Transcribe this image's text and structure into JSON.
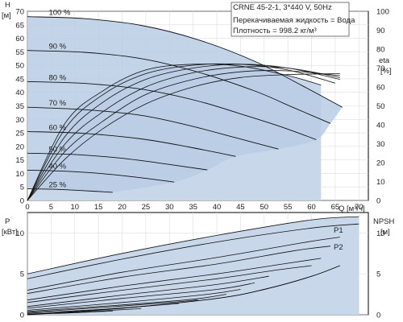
{
  "chart_data": [
    {
      "type": "line",
      "title": "CRNE 45-2-1, 3*440 V, 50Hz",
      "info_lines": [
        "Перекачиваемая жидкость = Вода",
        "Плотность = 998.2 кг/м³"
      ],
      "left_axis": {
        "name": "H",
        "unit": "[м]",
        "ticks": [
          "0",
          "5",
          "10",
          "15",
          "20",
          "25",
          "30",
          "35",
          "40",
          "45",
          "50",
          "55",
          "60",
          "65",
          "70"
        ],
        "ylim": [
          0,
          70
        ]
      },
      "right_axis": {
        "name": "eta",
        "unit": "[%]",
        "ticks": [
          "0",
          "10",
          "20",
          "30",
          "40",
          "50",
          "60",
          "70",
          "80",
          "90",
          "100"
        ],
        "ylim": [
          0,
          100
        ]
      },
      "x_axis": {
        "name": "Q",
        "unit": "[м³/ч]",
        "ticks": [
          "0",
          "5",
          "10",
          "15",
          "20",
          "25",
          "30",
          "35",
          "40",
          "45",
          "50",
          "55",
          "60",
          "65",
          "70"
        ],
        "xlim": [
          0,
          72
        ]
      },
      "speed_labels": [
        "100 %",
        "90 %",
        "80 %",
        "70 %",
        "60 %",
        "50 %",
        "40 %",
        "25 %"
      ],
      "head_curves": [
        {
          "name": "100 %",
          "x": [
            0,
            12,
            24,
            36,
            48,
            58,
            66.5
          ],
          "y": [
            68,
            67.3,
            64.8,
            59.5,
            51.5,
            42.5,
            34.5
          ]
        },
        {
          "name": "90 %",
          "x": [
            0,
            12,
            24,
            36,
            48,
            56,
            64
          ],
          "y": [
            55.5,
            54.8,
            52.5,
            47.5,
            40.5,
            34.5,
            28.5
          ]
        },
        {
          "name": "80 %",
          "x": [
            0,
            12,
            24,
            36,
            46,
            54,
            61
          ],
          "y": [
            44,
            43.3,
            41.2,
            36.8,
            31.5,
            27,
            22.5
          ]
        },
        {
          "name": "70 %",
          "x": [
            0,
            12,
            24,
            34,
            44,
            53
          ],
          "y": [
            34.5,
            33.6,
            31.5,
            27.8,
            23.2,
            19
          ]
        },
        {
          "name": "60 %",
          "x": [
            0,
            12,
            24,
            34,
            44
          ],
          "y": [
            25.5,
            24.8,
            22.8,
            19.8,
            16.3
          ]
        },
        {
          "name": "50 %",
          "x": [
            0,
            10,
            20,
            30,
            38
          ],
          "y": [
            17.5,
            17,
            15.6,
            13.3,
            11.3
          ]
        },
        {
          "name": "40 %",
          "x": [
            0,
            8,
            16,
            24,
            31
          ],
          "y": [
            11.2,
            10.8,
            9.9,
            8.4,
            6.8
          ]
        },
        {
          "name": "25 %",
          "x": [
            0,
            6,
            12,
            18
          ],
          "y": [
            4.3,
            4.1,
            3.6,
            3
          ]
        }
      ],
      "efficiency_curves": [
        {
          "x": [
            0,
            8,
            16,
            25,
            35,
            45,
            55,
            62
          ],
          "y": [
            0,
            41,
            58,
            69,
            72,
            71,
            66,
            61
          ]
        },
        {
          "x": [
            0,
            8,
            16,
            25,
            35,
            45,
            55,
            65
          ],
          "y": [
            0,
            38,
            56,
            67,
            71.5,
            72,
            69,
            62
          ]
        },
        {
          "x": [
            0,
            8,
            16,
            25,
            35,
            45,
            55,
            66
          ],
          "y": [
            0,
            34,
            52,
            64,
            70,
            72,
            70,
            64
          ]
        },
        {
          "x": [
            0,
            8,
            16,
            25,
            35,
            45,
            55,
            66
          ],
          "y": [
            0,
            30,
            47,
            60,
            67.5,
            70.5,
            70,
            65
          ]
        },
        {
          "x": [
            0,
            8,
            16,
            25,
            35,
            45,
            55,
            66
          ],
          "y": [
            0,
            26,
            42,
            56,
            64,
            68,
            68.5,
            66
          ]
        },
        {
          "x": [
            0,
            8,
            16,
            25,
            35,
            45,
            55,
            66
          ],
          "y": [
            0,
            22,
            38,
            51,
            60,
            65,
            66.5,
            67
          ]
        }
      ]
    },
    {
      "type": "line",
      "left_axis": {
        "name": "P",
        "unit": "[кВт]",
        "ticks": [
          "0",
          "5",
          "10"
        ],
        "ylim": [
          0,
          12.5
        ]
      },
      "right_axis": {
        "name": "NPSH",
        "unit": "[м]",
        "ticks": [
          "0",
          "5",
          "10"
        ],
        "ylim": [
          0,
          12.5
        ]
      },
      "xlim": [
        0,
        72
      ],
      "series_labels": [
        "P1",
        "P2"
      ],
      "power_curves": [
        {
          "x": [
            0,
            20,
            40,
            60,
            70
          ],
          "y": [
            5.0,
            7.5,
            9.7,
            11.6,
            12.0
          ]
        },
        {
          "x": [
            0,
            20,
            40,
            60,
            70
          ],
          "y": [
            4.4,
            6.8,
            8.9,
            10.6,
            11.1
          ]
        },
        {
          "x": [
            0,
            20,
            40,
            58,
            66
          ],
          "y": [
            3.0,
            5.2,
            7.0,
            8.8,
            9.5
          ]
        },
        {
          "x": [
            0,
            20,
            40,
            56,
            64
          ],
          "y": [
            2.6,
            4.6,
            6.2,
            7.8,
            8.4
          ]
        },
        {
          "x": [
            0,
            20,
            40,
            55,
            62
          ],
          "y": [
            1.8,
            3.5,
            5.0,
            6.3,
            6.9
          ]
        },
        {
          "x": [
            0,
            20,
            40,
            53,
            60
          ],
          "y": [
            1.5,
            3.0,
            4.4,
            5.5,
            6.0
          ]
        },
        {
          "x": [
            0,
            20,
            40,
            51
          ],
          "y": [
            1.0,
            2.4,
            3.7,
            4.7
          ]
        },
        {
          "x": [
            0,
            20,
            40,
            48
          ],
          "y": [
            0.8,
            2.0,
            3.1,
            3.9
          ]
        },
        {
          "x": [
            0,
            20,
            38,
            45
          ],
          "y": [
            0.55,
            1.5,
            2.5,
            3.1
          ]
        },
        {
          "x": [
            0,
            20,
            35,
            42
          ],
          "y": [
            0.4,
            1.2,
            1.9,
            2.5
          ]
        },
        {
          "x": [
            0,
            16,
            30,
            36
          ],
          "y": [
            0.3,
            0.9,
            1.5,
            1.8
          ]
        },
        {
          "x": [
            0,
            14,
            26,
            32
          ],
          "y": [
            0.2,
            0.6,
            1.1,
            1.4
          ]
        },
        {
          "x": [
            0,
            10,
            18,
            24
          ],
          "y": [
            0.1,
            0.3,
            0.55,
            0.75
          ]
        },
        {
          "x": [
            0,
            8,
            14,
            18
          ],
          "y": [
            0.05,
            0.2,
            0.35,
            0.45
          ]
        }
      ],
      "npsh_curve": {
        "x": [
          0,
          20,
          40,
          50,
          60,
          66
        ],
        "y": [
          0,
          0.8,
          2.0,
          3.1,
          4.7,
          6.0
        ]
      }
    }
  ]
}
